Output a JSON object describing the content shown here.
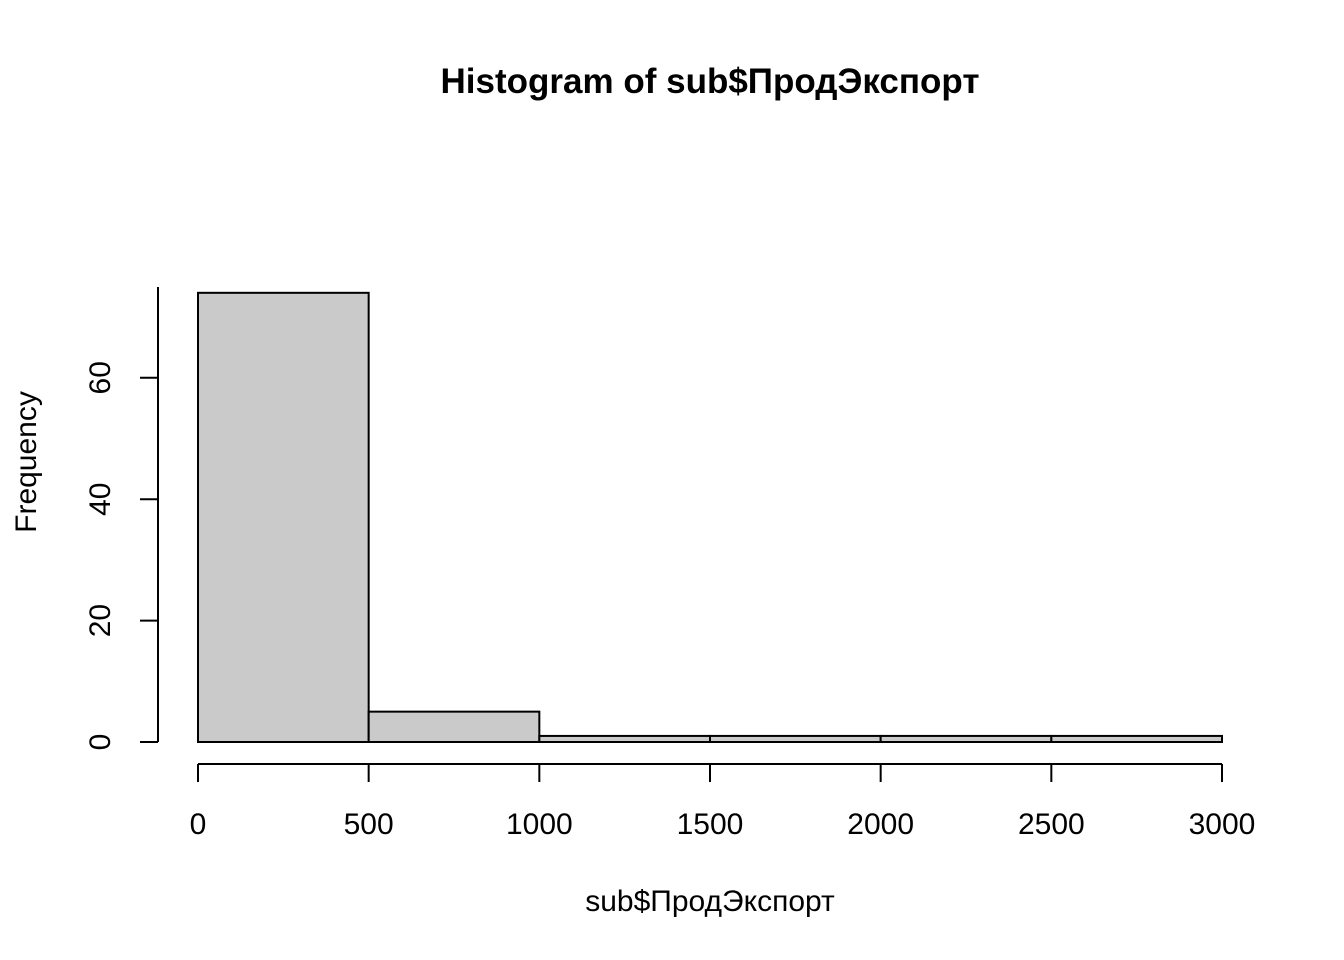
{
  "chart_data": {
    "type": "bar",
    "title": "Histogram of sub$ПродЭкспорт",
    "xlabel": "sub$ПродЭкспорт",
    "ylabel": "Frequency",
    "bins": [
      {
        "start": 0,
        "end": 500,
        "value": 74
      },
      {
        "start": 500,
        "end": 1000,
        "value": 5
      },
      {
        "start": 1000,
        "end": 1500,
        "value": 1
      },
      {
        "start": 1500,
        "end": 2000,
        "value": 1
      },
      {
        "start": 2000,
        "end": 2500,
        "value": 1
      },
      {
        "start": 2500,
        "end": 3000,
        "value": 1
      }
    ],
    "x_ticks": [
      "0",
      "500",
      "1000",
      "1500",
      "2000",
      "2500",
      "3000"
    ],
    "y_ticks": [
      "0",
      "20",
      "40",
      "60"
    ],
    "xlim": [
      0,
      3000
    ],
    "ylim": [
      0,
      74
    ],
    "grid": false,
    "legend": "none",
    "bar_color": "#cacaca",
    "edge_color": "#000000"
  }
}
